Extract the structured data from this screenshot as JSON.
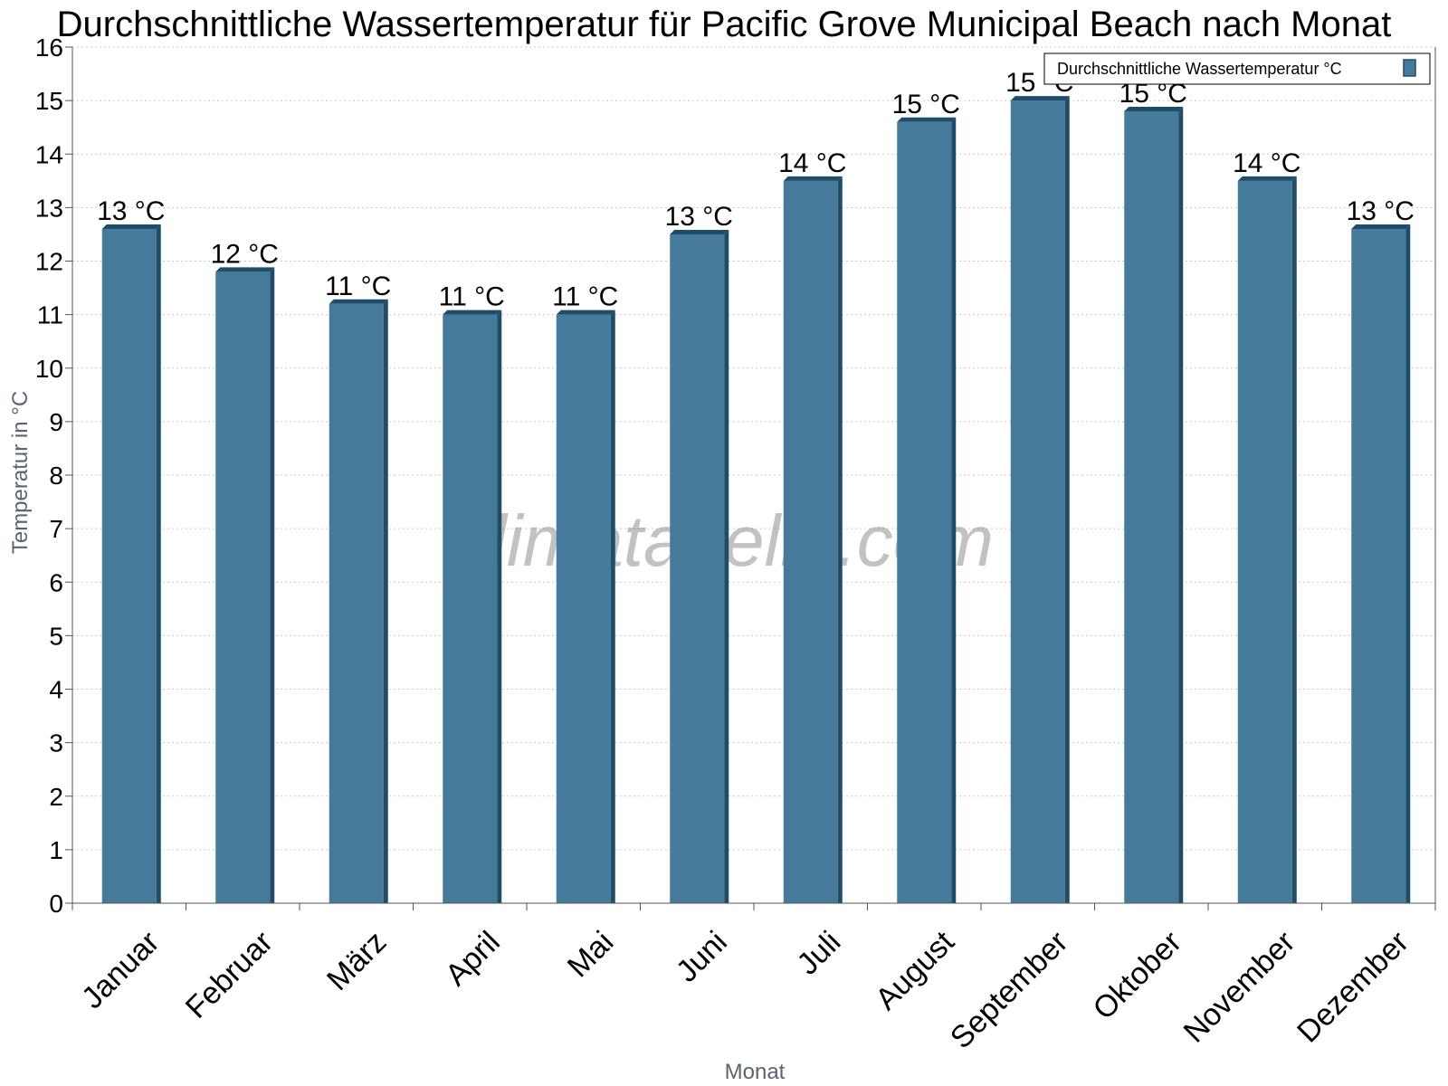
{
  "chart_data": {
    "type": "bar",
    "title": "Durchschnittliche Wassertemperatur für Pacific Grove Municipal Beach nach Monat",
    "xlabel": "Monat",
    "ylabel": "Temperatur in °C",
    "ylim": [
      0,
      16
    ],
    "yticks": [
      "0",
      "1",
      "2",
      "3",
      "4",
      "5",
      "6",
      "7",
      "8",
      "9",
      "10",
      "11",
      "12",
      "13",
      "14",
      "15",
      "16"
    ],
    "grid": true,
    "legend_position": "top-right",
    "categories": [
      "Januar",
      "Februar",
      "März",
      "April",
      "Mai",
      "Juni",
      "Juli",
      "August",
      "September",
      "Oktober",
      "November",
      "Dezember"
    ],
    "series": [
      {
        "name": "Durchschnittliche Wassertemperatur °C",
        "color": "#467a9b",
        "edge_color": "#1e4d6b",
        "values": [
          12.6,
          11.8,
          11.2,
          11.0,
          11.0,
          12.5,
          13.5,
          14.6,
          15.0,
          14.8,
          13.5,
          12.6
        ],
        "labels": [
          "13 °C",
          "12 °C",
          "11 °C",
          "11 °C",
          "11 °C",
          "13 °C",
          "14 °C",
          "15 °C",
          "15 °C",
          "15 °C",
          "14 °C",
          "13 °C"
        ]
      }
    ],
    "watermark": "klimatabelle.com"
  }
}
